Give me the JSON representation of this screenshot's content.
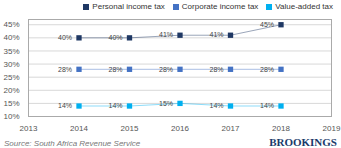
{
  "chart_data": {
    "type": "line",
    "x": [
      2014,
      2015,
      2016,
      2017,
      2018
    ],
    "series": [
      {
        "name": "Personal income tax",
        "color": "#1f3864",
        "marker": "square",
        "values": [
          40,
          40,
          41,
          41,
          45
        ],
        "value_labels": [
          "40%",
          "40%",
          "41%",
          "41%",
          "45%"
        ]
      },
      {
        "name": "Corporate income tax",
        "color": "#4472c4",
        "marker": "square",
        "values": [
          28,
          28,
          28,
          28,
          28
        ],
        "value_labels": [
          "28%",
          "28%",
          "28%",
          "28%",
          "28%"
        ]
      },
      {
        "name": "Value-added tax",
        "color": "#00b0f0",
        "marker": "square",
        "values": [
          14,
          14,
          15,
          14,
          14
        ],
        "value_labels": [
          "14%",
          "14%",
          "15%",
          "14%",
          "14%"
        ]
      }
    ],
    "xlim": [
      2013,
      2019
    ],
    "xticks": [
      2013,
      2014,
      2015,
      2016,
      2017,
      2018,
      2019
    ],
    "ylim": [
      10,
      47
    ],
    "yticks": [
      {
        "value": 10,
        "label": "10%"
      },
      {
        "value": 15,
        "label": "15%"
      },
      {
        "value": 20,
        "label": "20%"
      },
      {
        "value": 25,
        "label": "25%"
      },
      {
        "value": 30,
        "label": "30%"
      },
      {
        "value": 35,
        "label": "35%"
      },
      {
        "value": 40,
        "label": "40%"
      },
      {
        "value": 45,
        "label": "45%"
      }
    ],
    "grid": "y",
    "legend": "upper right",
    "data_labels": true,
    "annotations": [
      "Source: South Africa Revenue Service",
      "BROOKINGS"
    ]
  }
}
